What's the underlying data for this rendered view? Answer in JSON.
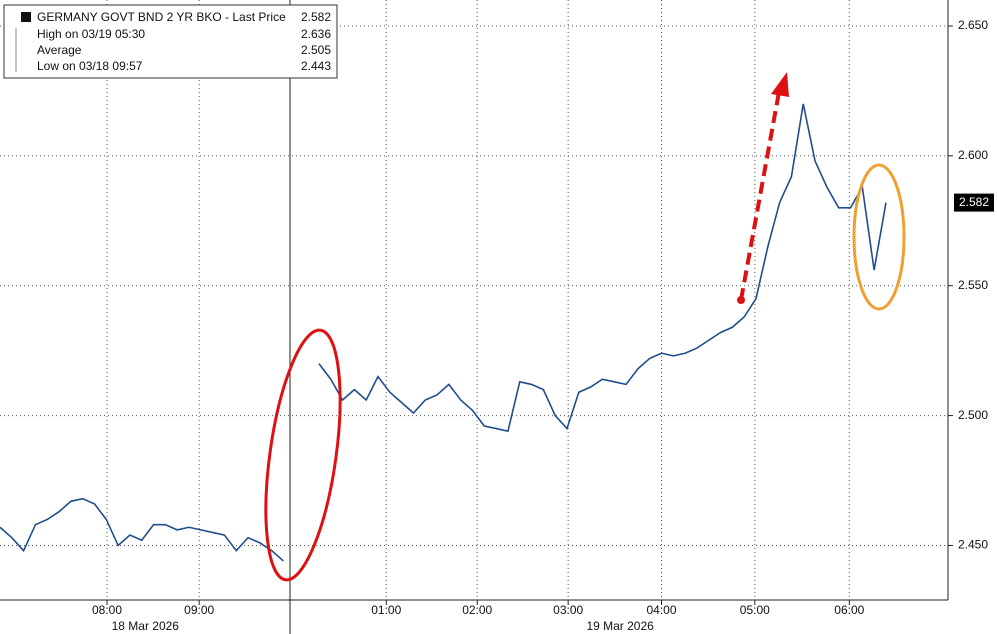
{
  "chart_data": {
    "type": "line",
    "legend": {
      "title": "GERMANY GOVT BND 2 YR BKO - Last Price",
      "title_value": 2.582,
      "entries": [
        {
          "label": "High on 03/19 05:30",
          "value": 2.636
        },
        {
          "label": "Average",
          "value": 2.505
        },
        {
          "label": "Low on 03/18 09:57",
          "value": 2.443
        }
      ]
    },
    "last_price": 2.582,
    "categories": [
      null,
      null,
      null,
      null,
      null,
      null,
      null,
      null,
      null,
      null,
      null,
      null,
      null,
      null,
      null,
      null,
      null,
      null,
      null,
      null,
      null,
      null,
      null,
      null,
      null,
      null,
      null,
      null,
      null,
      null,
      null,
      null,
      null,
      null,
      null,
      null,
      null,
      null,
      null,
      null,
      null,
      null,
      null,
      null,
      null,
      null,
      null,
      null,
      null,
      null,
      null,
      null,
      null,
      null,
      null,
      null,
      null,
      null,
      null,
      null,
      null,
      null,
      null,
      null,
      null,
      null,
      null,
      null,
      null,
      null,
      null,
      null,
      null,
      null,
      null,
      null
    ],
    "series": [
      {
        "name": "Last Price",
        "color": "#1f4e8c",
        "values": [
          2.457,
          2.453,
          2.448,
          2.458,
          2.46,
          2.463,
          2.467,
          2.468,
          2.466,
          2.46,
          2.45,
          2.454,
          2.452,
          2.458,
          2.458,
          2.456,
          2.457,
          2.456,
          2.455,
          2.454,
          2.448,
          2.453,
          2.451,
          2.448,
          2.444,
          null,
          null,
          2.52,
          2.514,
          2.506,
          2.51,
          2.506,
          2.515,
          2.509,
          2.505,
          2.501,
          2.506,
          2.508,
          2.512,
          2.506,
          2.502,
          2.496,
          2.495,
          2.494,
          2.513,
          2.512,
          2.51,
          2.5,
          2.495,
          2.509,
          2.511,
          2.514,
          2.513,
          2.512,
          2.518,
          2.522,
          2.524,
          2.523,
          2.524,
          2.526,
          2.529,
          2.532,
          2.534,
          2.538,
          2.545,
          2.565,
          2.582,
          2.592,
          2.62,
          2.598,
          2.588,
          2.58,
          2.58,
          2.588,
          2.556,
          2.582
        ]
      }
    ],
    "xlim": [
      0,
      80
    ],
    "xticks": [
      {
        "value": 9.06,
        "label": "08:00"
      },
      {
        "value": 16.86,
        "label": "09:00"
      },
      {
        "value": 32.7,
        "label": "01:00"
      },
      {
        "value": 40.4,
        "label": "02:00"
      },
      {
        "value": 48.1,
        "label": "03:00"
      },
      {
        "value": 56,
        "label": "04:00"
      },
      {
        "value": 63.9,
        "label": "05:00"
      },
      {
        "value": 71.9,
        "label": "06:00"
      }
    ],
    "date_labels": [
      {
        "value": 12.3,
        "label": "18 Mar 2026"
      },
      {
        "value": 52.5,
        "label": "19 Mar 2026"
      }
    ],
    "ylim": [
      2.429,
      2.66
    ],
    "yticks": [
      {
        "value": 2.45,
        "label": "2.450"
      },
      {
        "value": 2.5,
        "label": "2.500"
      },
      {
        "value": 2.55,
        "label": "2.550"
      },
      {
        "value": 2.6,
        "label": "2.600"
      },
      {
        "value": 2.65,
        "label": "2.650"
      }
    ],
    "grid": true
  }
}
